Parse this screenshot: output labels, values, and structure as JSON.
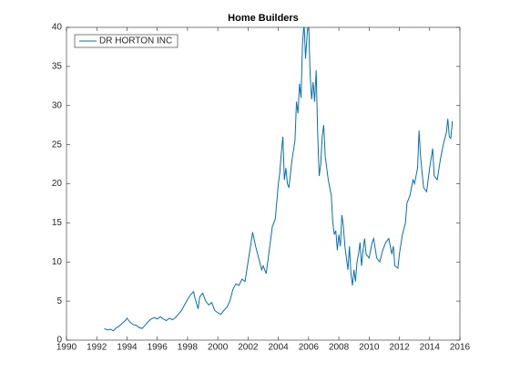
{
  "chart_data": {
    "type": "line",
    "title": "Home Builders",
    "legend": "upper left",
    "xlim": [
      1990,
      2016
    ],
    "xticks": [
      1990,
      1992,
      1994,
      1996,
      1998,
      2000,
      2002,
      2004,
      2006,
      2008,
      2010,
      2012,
      2014,
      2016
    ],
    "ylim": [
      0,
      40
    ],
    "yticks": [
      0,
      5,
      10,
      15,
      20,
      25,
      30,
      35,
      40
    ],
    "series": [
      {
        "name": "DR HORTON INC",
        "color": "#0072bd",
        "x": [
          1992.5,
          1992.7,
          1992.9,
          1993.1,
          1993.3,
          1993.5,
          1993.7,
          1993.9,
          1994.0,
          1994.2,
          1994.4,
          1994.6,
          1994.8,
          1995.0,
          1995.2,
          1995.4,
          1995.6,
          1995.8,
          1996.0,
          1996.2,
          1996.4,
          1996.6,
          1996.8,
          1997.0,
          1997.2,
          1997.4,
          1997.6,
          1997.8,
          1998.0,
          1998.2,
          1998.4,
          1998.5,
          1998.7,
          1998.8,
          1999.0,
          1999.2,
          1999.4,
          1999.6,
          1999.8,
          2000.0,
          2000.2,
          2000.4,
          2000.6,
          2000.8,
          2001.0,
          2001.2,
          2001.4,
          2001.6,
          2001.8,
          2002.0,
          2002.2,
          2002.3,
          2002.5,
          2002.7,
          2002.9,
          2003.0,
          2003.2,
          2003.4,
          2003.6,
          2003.8,
          2004.0,
          2004.1,
          2004.2,
          2004.3,
          2004.4,
          2004.5,
          2004.6,
          2004.7,
          2004.9,
          2005.1,
          2005.2,
          2005.3,
          2005.4,
          2005.5,
          2005.6,
          2005.7,
          2005.8,
          2005.9,
          2006.0,
          2006.1,
          2006.2,
          2006.3,
          2006.4,
          2006.5,
          2006.6,
          2006.7,
          2006.8,
          2006.9,
          2007.0,
          2007.1,
          2007.2,
          2007.3,
          2007.5,
          2007.6,
          2007.7,
          2007.8,
          2007.9,
          2008.0,
          2008.1,
          2008.2,
          2008.3,
          2008.4,
          2008.5,
          2008.6,
          2008.7,
          2008.8,
          2008.9,
          2009.0,
          2009.1,
          2009.2,
          2009.3,
          2009.4,
          2009.5,
          2009.6,
          2009.7,
          2009.8,
          2010.0,
          2010.2,
          2010.3,
          2010.5,
          2010.7,
          2010.9,
          2011.1,
          2011.3,
          2011.5,
          2011.6,
          2011.7,
          2011.9,
          2012.0,
          2012.2,
          2012.4,
          2012.5,
          2012.7,
          2012.9,
          2013.0,
          2013.2,
          2013.3,
          2013.4,
          2013.5,
          2013.6,
          2013.8,
          2014.0,
          2014.2,
          2014.3,
          2014.5,
          2014.7,
          2014.9,
          2015.1,
          2015.2,
          2015.3,
          2015.4,
          2015.5
        ],
        "values": [
          1.5,
          1.3,
          1.4,
          1.2,
          1.6,
          1.8,
          2.2,
          2.5,
          2.8,
          2.3,
          2.0,
          1.9,
          1.6,
          1.5,
          1.9,
          2.4,
          2.7,
          2.9,
          2.7,
          3.0,
          2.7,
          2.5,
          2.8,
          2.6,
          2.9,
          3.3,
          3.8,
          4.5,
          5.2,
          5.8,
          6.2,
          5.3,
          4.0,
          5.5,
          6.0,
          5.0,
          4.5,
          4.8,
          3.8,
          3.5,
          3.3,
          3.8,
          4.2,
          5.0,
          6.5,
          7.2,
          7.0,
          7.8,
          7.5,
          10.0,
          12.5,
          13.8,
          12.0,
          10.5,
          9.0,
          9.5,
          8.5,
          11.5,
          14.5,
          15.5,
          20.0,
          21.5,
          24.0,
          26.0,
          20.5,
          22.0,
          20.0,
          19.5,
          23.0,
          25.5,
          30.5,
          29.0,
          32.8,
          31.0,
          38.0,
          40.5,
          36.0,
          39.0,
          41.0,
          34.0,
          30.8,
          33.0,
          30.5,
          34.5,
          26.5,
          21.0,
          22.5,
          26.0,
          27.5,
          23.5,
          22.0,
          20.5,
          18.5,
          15.0,
          13.5,
          14.0,
          11.5,
          13.5,
          12.0,
          16.0,
          14.5,
          12.0,
          10.5,
          9.0,
          12.0,
          8.5,
          7.0,
          9.0,
          7.5,
          10.0,
          11.0,
          12.5,
          9.5,
          11.5,
          13.0,
          11.0,
          10.5,
          12.5,
          13.0,
          10.5,
          10.0,
          11.5,
          12.5,
          13.0,
          11.0,
          12.0,
          9.5,
          9.2,
          11.0,
          13.5,
          15.0,
          17.5,
          18.5,
          20.5,
          20.0,
          22.0,
          26.8,
          23.5,
          21.5,
          19.5,
          19.0,
          22.0,
          24.5,
          21.0,
          20.5,
          23.0,
          25.0,
          26.5,
          28.3,
          26.0,
          25.8,
          28.0
        ]
      }
    ]
  }
}
